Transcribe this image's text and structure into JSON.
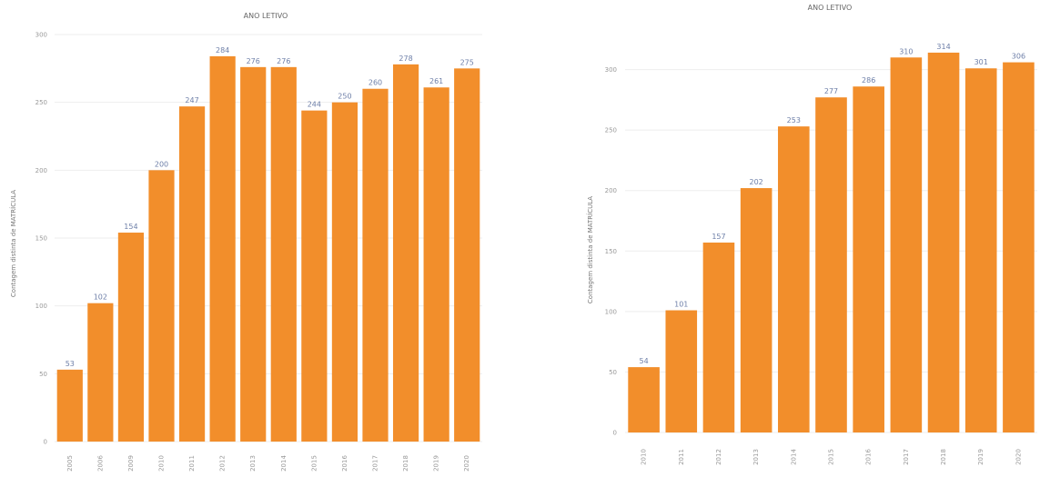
{
  "chart_data": [
    {
      "type": "bar",
      "title": "ANO LETIVO",
      "xlabel": "",
      "ylabel": "Contagem distinta de MATRÍCULA",
      "categories": [
        "2005",
        "2006",
        "2009",
        "2010",
        "2011",
        "2012",
        "2013",
        "2014",
        "2015",
        "2016",
        "2017",
        "2018",
        "2019",
        "2020"
      ],
      "values": [
        53,
        102,
        154,
        200,
        247,
        284,
        276,
        276,
        244,
        250,
        260,
        278,
        261,
        275
      ],
      "value_labels": [
        "53",
        "102",
        "154",
        "200",
        "247",
        "284",
        "276",
        "276",
        "244",
        "250",
        "260",
        "278",
        "261",
        "275"
      ],
      "ylim": [
        0,
        300
      ],
      "yticks": [
        "0",
        "50",
        "100",
        "150",
        "200",
        "250",
        "300"
      ],
      "color": "#f28e2b",
      "grid": true
    },
    {
      "type": "bar",
      "title": "ANO LETIVO",
      "xlabel": "",
      "ylabel": "Contagem distinta de MATRÍCULA",
      "categories": [
        "2010",
        "2011",
        "2012",
        "2013",
        "2014",
        "2015",
        "2016",
        "2017",
        "2018",
        "2019",
        "2020"
      ],
      "values": [
        54,
        101,
        157,
        202,
        253,
        277,
        286,
        310,
        314,
        301,
        306
      ],
      "value_labels": [
        "54",
        "101",
        "157",
        "202",
        "253",
        "277",
        "286",
        "310",
        "314",
        "301",
        "306"
      ],
      "ylim": [
        0,
        350
      ],
      "yticks": [
        "0",
        "50",
        "100",
        "150",
        "200",
        "250",
        "300"
      ],
      "color": "#f28e2b",
      "grid": true
    }
  ]
}
